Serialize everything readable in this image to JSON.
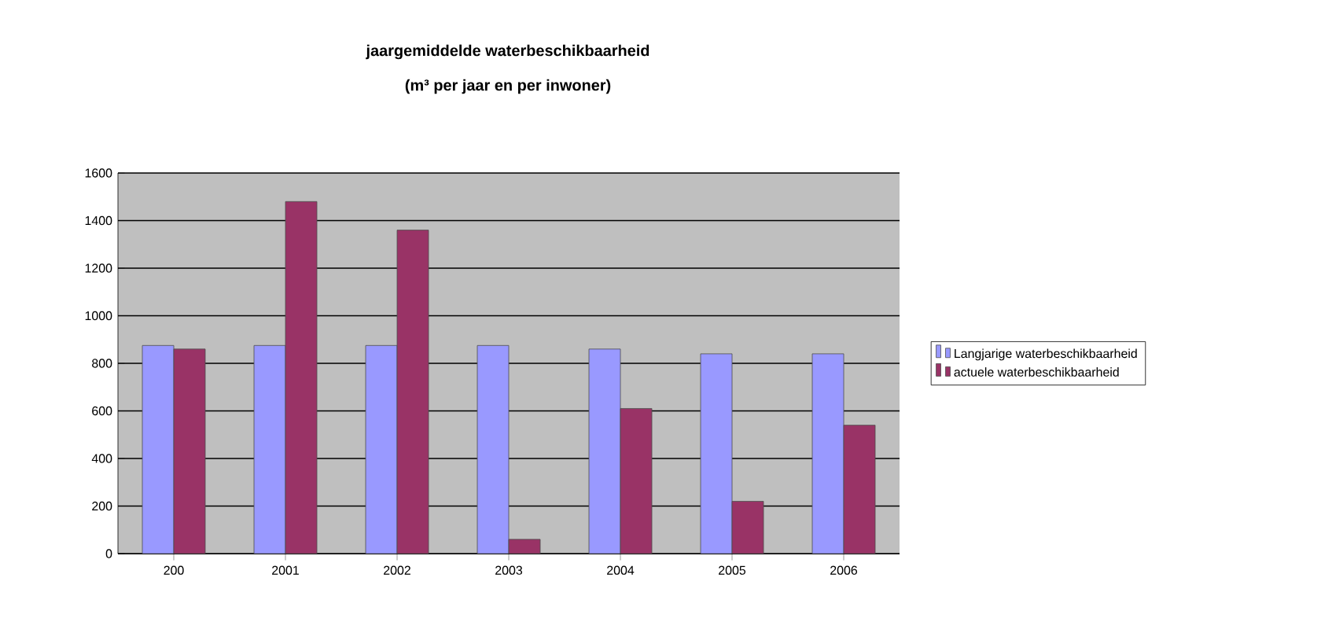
{
  "chart_data": {
    "type": "bar",
    "title": "jaargemiddelde waterbeschikbaarheid",
    "subtitle": "(m³ per jaar en per inwoner)",
    "categories": [
      "200",
      "2001",
      "2002",
      "2003",
      "2004",
      "2005",
      "2006"
    ],
    "series": [
      {
        "name": "Langjarige waterbeschikbaarheid",
        "color": "#9999ff",
        "values": [
          875,
          875,
          875,
          875,
          860,
          840,
          840
        ]
      },
      {
        "name": "actuele waterbeschikbaarheid",
        "color": "#993366",
        "values": [
          860,
          1480,
          1360,
          60,
          610,
          220,
          540
        ]
      }
    ],
    "ylim": [
      0,
      1600
    ],
    "yticks": [
      0,
      200,
      400,
      600,
      800,
      1000,
      1200,
      1400,
      1600
    ],
    "grid": "y",
    "legend": "right"
  }
}
